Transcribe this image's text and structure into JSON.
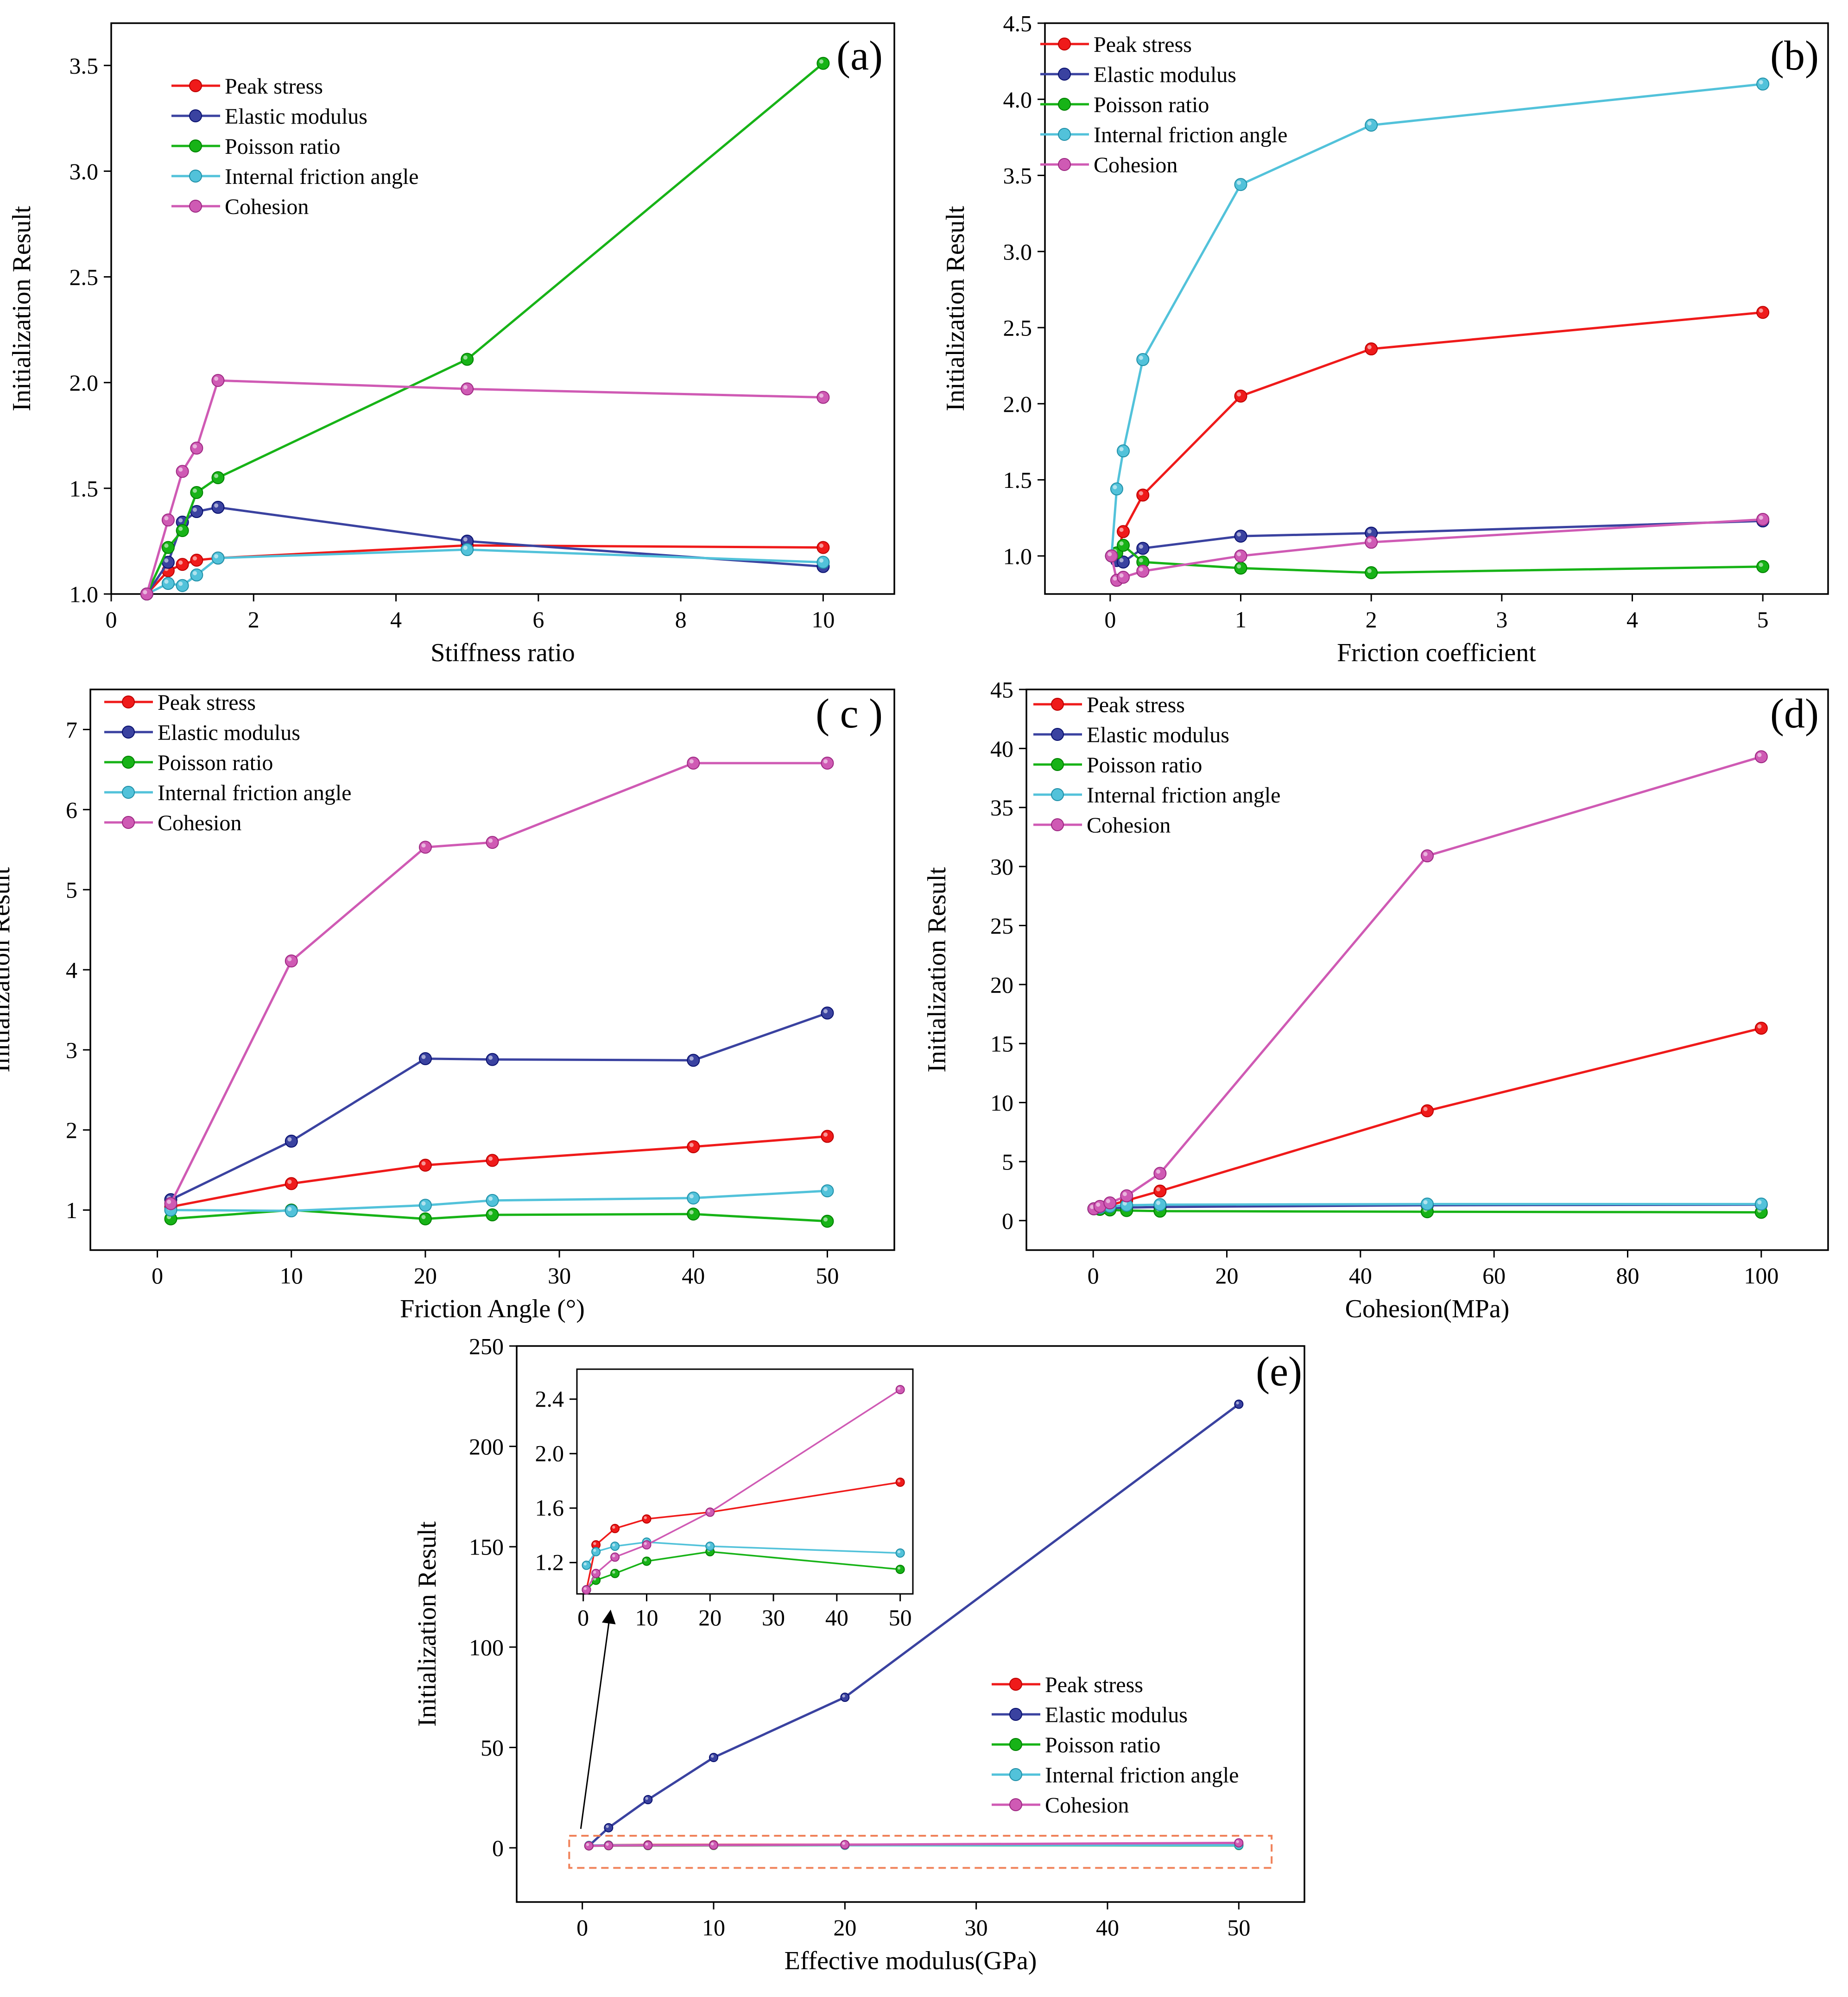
{
  "colors": {
    "peak": "#ef1a1a",
    "elastic": "#3a42a0",
    "poisson": "#17b317",
    "friction": "#52c2da",
    "cohesion": "#cf5ab4",
    "annotation": "#f0825a"
  },
  "chart_data": [
    {
      "id": "a",
      "type": "line",
      "panel_label": "(a)",
      "xlabel": "Stiffness ratio",
      "ylabel": "Initialization  Result",
      "xlim": [
        0,
        11
      ],
      "ylim": [
        1.0,
        3.7
      ],
      "xticks": [
        0,
        2,
        4,
        6,
        8,
        10
      ],
      "yticks": [
        1.0,
        1.5,
        2.0,
        2.5,
        3.0,
        3.5
      ],
      "ytick_labels": [
        "1.0",
        "1.5",
        "2.0",
        "2.5",
        "3.0",
        "3.5"
      ],
      "legend_position": "top-left",
      "x": [
        0.5,
        0.8,
        1,
        1.2,
        1.5,
        5,
        10
      ],
      "series": [
        {
          "name": "Peak stress",
          "color_key": "peak",
          "values": [
            1.0,
            1.11,
            1.14,
            1.16,
            1.17,
            1.23,
            1.22
          ]
        },
        {
          "name": "Elastic modulus",
          "color_key": "elastic",
          "values": [
            1.0,
            1.15,
            1.34,
            1.39,
            1.41,
            1.25,
            1.13
          ]
        },
        {
          "name": "Poisson ratio",
          "color_key": "poisson",
          "values": [
            1.0,
            1.22,
            1.3,
            1.48,
            1.55,
            2.11,
            3.51
          ]
        },
        {
          "name": "Internal friction angle",
          "color_key": "friction",
          "values": [
            1.0,
            1.05,
            1.04,
            1.09,
            1.17,
            1.21,
            1.15
          ]
        },
        {
          "name": "Cohesion",
          "color_key": "cohesion",
          "values": [
            1.0,
            1.35,
            1.58,
            1.69,
            2.01,
            1.97,
            1.93
          ]
        }
      ]
    },
    {
      "id": "b",
      "type": "line",
      "panel_label": "(b)",
      "xlabel": "Friction coefficient",
      "ylabel": "Initialization  Result",
      "xlim": [
        -0.5,
        5.5
      ],
      "ylim": [
        0.75,
        4.5
      ],
      "xticks": [
        0,
        1,
        2,
        3,
        4,
        5
      ],
      "yticks": [
        1.0,
        1.5,
        2.0,
        2.5,
        3.0,
        3.5,
        4.0,
        4.5
      ],
      "ytick_labels": [
        "1.0",
        "1.5",
        "2.0",
        "2.5",
        "3.0",
        "3.5",
        "4.0",
        "4.5"
      ],
      "legend_position": "top-left",
      "x": [
        0.01,
        0.05,
        0.1,
        0.25,
        1,
        2,
        5
      ],
      "series": [
        {
          "name": "Peak stress",
          "color_key": "peak",
          "values": [
            1.0,
            0.99,
            1.16,
            1.4,
            2.05,
            2.36,
            2.6
          ]
        },
        {
          "name": "Elastic modulus",
          "color_key": "elastic",
          "values": [
            1.0,
            0.97,
            0.96,
            1.05,
            1.13,
            1.15,
            1.23
          ]
        },
        {
          "name": "Poisson ratio",
          "color_key": "poisson",
          "values": [
            1.0,
            1.02,
            1.07,
            0.96,
            0.92,
            0.89,
            0.93
          ]
        },
        {
          "name": "Internal friction angle",
          "color_key": "friction",
          "values": [
            1.0,
            1.44,
            1.69,
            2.29,
            3.44,
            3.83,
            4.1
          ]
        },
        {
          "name": "Cohesion",
          "color_key": "cohesion",
          "values": [
            1.0,
            0.84,
            0.86,
            0.9,
            1.0,
            1.09,
            1.24
          ]
        }
      ]
    },
    {
      "id": "c",
      "type": "line",
      "panel_label": "( c )",
      "xlabel": "Friction Angle (°)",
      "ylabel": "Initialization  Result",
      "xlim": [
        -5,
        55
      ],
      "ylim": [
        0.5,
        7.5
      ],
      "xticks": [
        0,
        10,
        20,
        30,
        40,
        50
      ],
      "yticks": [
        1,
        2,
        3,
        4,
        5,
        6,
        7
      ],
      "ytick_labels": [
        "1",
        "2",
        "3",
        "4",
        "5",
        "6",
        "7"
      ],
      "legend_position": "top-left",
      "x": [
        1,
        10,
        20,
        25,
        40,
        50
      ],
      "series": [
        {
          "name": "Peak stress",
          "color_key": "peak",
          "values": [
            1.04,
            1.33,
            1.56,
            1.62,
            1.79,
            1.92
          ]
        },
        {
          "name": "Elastic modulus",
          "color_key": "elastic",
          "values": [
            1.13,
            1.86,
            2.89,
            2.88,
            2.87,
            3.46
          ]
        },
        {
          "name": "Poisson ratio",
          "color_key": "poisson",
          "values": [
            0.89,
            1.0,
            0.89,
            0.94,
            0.95,
            0.86
          ]
        },
        {
          "name": "Internal friction angle",
          "color_key": "friction",
          "values": [
            1.0,
            0.99,
            1.06,
            1.12,
            1.15,
            1.24
          ]
        },
        {
          "name": "Cohesion",
          "color_key": "cohesion",
          "values": [
            1.08,
            4.11,
            5.53,
            5.59,
            6.58,
            6.58
          ]
        }
      ]
    },
    {
      "id": "d",
      "type": "line",
      "panel_label": "(d)",
      "xlabel": "Cohesion(MPa)",
      "ylabel": "Initialization  Result",
      "xlim": [
        -10,
        110
      ],
      "ylim": [
        -2.5,
        45
      ],
      "xticks": [
        0,
        20,
        40,
        60,
        80,
        100
      ],
      "yticks": [
        0,
        5,
        10,
        15,
        20,
        25,
        30,
        35,
        40,
        45
      ],
      "ytick_labels": [
        "0",
        "5",
        "10",
        "15",
        "20",
        "25",
        "30",
        "35",
        "40",
        "45"
      ],
      "legend_position": "top-left",
      "x": [
        0.1,
        1,
        2.5,
        5,
        10,
        50,
        100
      ],
      "series": [
        {
          "name": "Peak stress",
          "color_key": "peak",
          "values": [
            1.0,
            1.1,
            1.3,
            1.7,
            2.5,
            9.3,
            16.3
          ]
        },
        {
          "name": "Elastic modulus",
          "color_key": "elastic",
          "values": [
            1.0,
            1.0,
            1.05,
            1.1,
            1.15,
            1.3,
            1.35
          ]
        },
        {
          "name": "Poisson ratio",
          "color_key": "poisson",
          "values": [
            1.0,
            0.95,
            0.9,
            0.85,
            0.8,
            0.75,
            0.7
          ]
        },
        {
          "name": "Internal friction angle",
          "color_key": "friction",
          "values": [
            1.0,
            1.1,
            1.2,
            1.3,
            1.35,
            1.4,
            1.4
          ]
        },
        {
          "name": "Cohesion",
          "color_key": "cohesion",
          "values": [
            1.0,
            1.2,
            1.5,
            2.1,
            4.0,
            30.9,
            39.3
          ]
        }
      ]
    },
    {
      "id": "e",
      "type": "line",
      "panel_label": "(e)",
      "xlabel": "Effective modulus(GPa)",
      "ylabel": "Initialization  Result",
      "xlim": [
        -5,
        55
      ],
      "ylim": [
        -27,
        250
      ],
      "xticks": [
        0,
        10,
        20,
        30,
        40,
        50
      ],
      "yticks": [
        0,
        50,
        100,
        150,
        200,
        250
      ],
      "ytick_labels": [
        "0",
        "50",
        "100",
        "150",
        "200",
        "250"
      ],
      "legend_position": "bottom-right",
      "x": [
        0.5,
        2,
        5,
        10,
        20,
        50
      ],
      "series": [
        {
          "name": "Peak stress",
          "color_key": "peak",
          "values": [
            1.0,
            1.33,
            1.45,
            1.52,
            1.57,
            1.79
          ]
        },
        {
          "name": "Elastic modulus",
          "color_key": "elastic",
          "values": [
            1.0,
            10,
            24,
            45,
            75,
            221
          ]
        },
        {
          "name": "Poisson ratio",
          "color_key": "poisson",
          "values": [
            1.0,
            1.07,
            1.12,
            1.21,
            1.28,
            1.15
          ]
        },
        {
          "name": "Internal friction angle",
          "color_key": "friction",
          "values": [
            1.18,
            1.28,
            1.32,
            1.35,
            1.32,
            1.27
          ]
        },
        {
          "name": "Cohesion",
          "color_key": "cohesion",
          "values": [
            1.0,
            1.12,
            1.24,
            1.33,
            1.57,
            2.47
          ]
        }
      ],
      "inset": {
        "xlim": [
          -1,
          52
        ],
        "ylim": [
          0.97,
          2.62
        ],
        "xticks": [
          0,
          10,
          20,
          30,
          40,
          50
        ],
        "yticks": [
          1.2,
          1.6,
          2.0,
          2.4
        ],
        "ytick_labels": [
          "1.2",
          "1.6",
          "2.0",
          "2.4"
        ],
        "x": [
          0.5,
          2,
          5,
          10,
          20,
          50
        ],
        "series": [
          {
            "name": "Peak stress",
            "color_key": "peak",
            "values": [
              1.0,
              1.33,
              1.45,
              1.52,
              1.57,
              1.79
            ]
          },
          {
            "name": "Elastic modulus",
            "color_key": "elastic",
            "values": [
              1.0,
              null,
              null,
              null,
              null,
              null
            ]
          },
          {
            "name": "Poisson ratio",
            "color_key": "poisson",
            "values": [
              1.0,
              1.07,
              1.12,
              1.21,
              1.28,
              1.15
            ]
          },
          {
            "name": "Internal friction angle",
            "color_key": "friction",
            "values": [
              1.18,
              1.28,
              1.32,
              1.35,
              1.32,
              1.27
            ]
          },
          {
            "name": "Cohesion",
            "color_key": "cohesion",
            "values": [
              1.0,
              1.12,
              1.24,
              1.33,
              1.57,
              2.47
            ]
          }
        ]
      }
    }
  ]
}
